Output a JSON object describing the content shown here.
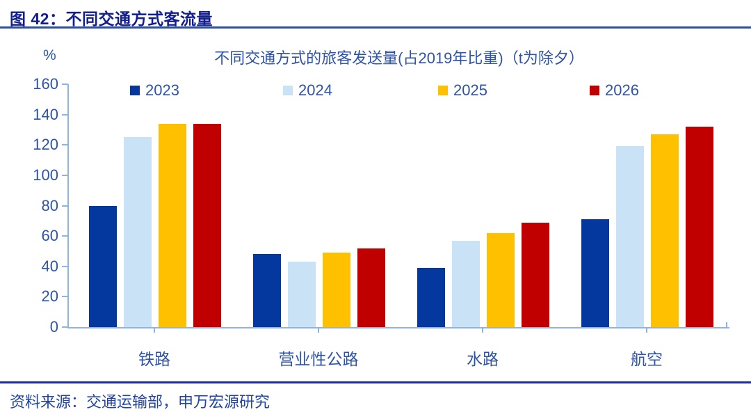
{
  "page": {
    "header": "图 42：不同交通方式客流量",
    "source": "资料来源：交通运输部，申万宏源研究"
  },
  "chart_data": {
    "type": "bar",
    "title": "不同交通方式的旅客发送量(占2019年比重)（t为除夕）",
    "unit_label": "%",
    "xlabel": "",
    "ylabel": "%",
    "ylim": [
      0,
      160
    ],
    "yticks": [
      0,
      20,
      40,
      60,
      80,
      100,
      120,
      140,
      160
    ],
    "grid": false,
    "legend_position": "top",
    "categories": [
      "铁路",
      "营业性公路",
      "水路",
      "航空"
    ],
    "series": [
      {
        "name": "2023",
        "color": "#05389E",
        "values": [
          80,
          48,
          39,
          71
        ]
      },
      {
        "name": "2024",
        "color": "#C9E2F5",
        "values": [
          125,
          43,
          57,
          119
        ]
      },
      {
        "name": "2025",
        "color": "#FFC000",
        "values": [
          134,
          49,
          62,
          127
        ]
      },
      {
        "name": "2026",
        "color": "#C00000",
        "values": [
          134,
          52,
          69,
          132
        ]
      }
    ]
  },
  "colors": {
    "header_navy": "#121E8C",
    "rule_top": "#2B4CB0",
    "rule_bottom": "#1B2E9A",
    "chart_text": "#2D53AB",
    "axis": "#8EB4E3"
  }
}
